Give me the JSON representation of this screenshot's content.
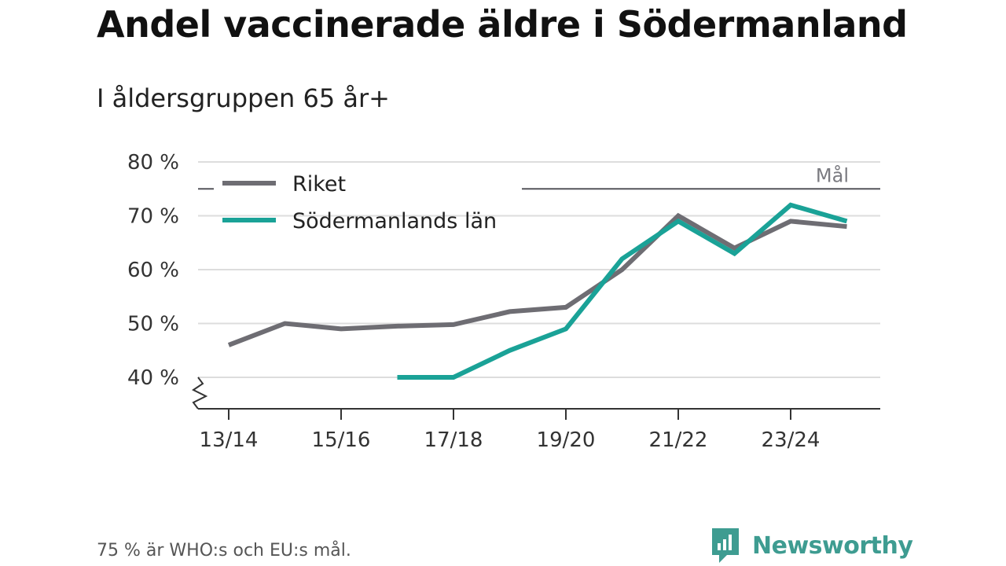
{
  "title": "Andel vaccinerade äldre i Södermanland",
  "subtitle": "I åldersgruppen 65 år+",
  "footnote": "75 % är WHO:s och EU:s mål.",
  "brand": "Newsworthy",
  "colors": {
    "riket": "#6e6d73",
    "sodermanland": "#1aa297",
    "target_line": "#55555a",
    "grid": "#dddddd",
    "axis": "#333333",
    "brand": "#3e9c91"
  },
  "chart_data": {
    "type": "line",
    "title": "Andel vaccinerade äldre i Södermanland",
    "xlabel": "",
    "ylabel": "",
    "x": [
      "13/14",
      "14/15",
      "15/16",
      "16/17",
      "17/18",
      "18/19",
      "19/20",
      "20/21",
      "21/22",
      "22/23",
      "23/24",
      "24/25"
    ],
    "xticks": [
      "13/14",
      "15/16",
      "17/18",
      "19/20",
      "21/22",
      "23/24"
    ],
    "ylim": [
      40,
      80
    ],
    "yticks": [
      {
        "value": 40,
        "label": "40 %"
      },
      {
        "value": 50,
        "label": "50 %"
      },
      {
        "value": 60,
        "label": "60 %"
      },
      {
        "value": 70,
        "label": "70 %"
      },
      {
        "value": 80,
        "label": "80 %"
      }
    ],
    "y_axis_break": true,
    "grid": true,
    "legend_position": "top-left",
    "series": [
      {
        "name": "Riket",
        "key": "riket",
        "values": [
          46,
          50,
          49,
          49.5,
          49.8,
          52.2,
          53,
          60,
          70,
          64,
          69,
          68
        ]
      },
      {
        "name": "Södermanlands län",
        "key": "sodermanland",
        "values": [
          null,
          null,
          null,
          40,
          40,
          45,
          49,
          62,
          69,
          63,
          72,
          69
        ]
      }
    ],
    "target": {
      "value": 75,
      "label": "Mål"
    }
  }
}
